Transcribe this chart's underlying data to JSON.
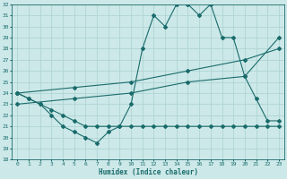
{
  "xlabel": "Humidex (Indice chaleur)",
  "background_color": "#cce8e8",
  "grid_color": "#b0d4d4",
  "line_color": "#1a6b6b",
  "ylim": [
    18,
    32
  ],
  "xlim": [
    -0.5,
    23.5
  ],
  "yticks": [
    18,
    19,
    20,
    21,
    22,
    23,
    24,
    25,
    26,
    27,
    28,
    29,
    30,
    31,
    32
  ],
  "xticks": [
    0,
    1,
    2,
    3,
    4,
    5,
    6,
    7,
    8,
    9,
    10,
    11,
    12,
    13,
    14,
    15,
    16,
    17,
    18,
    19,
    20,
    21,
    22,
    23
  ],
  "line1_x": [
    0,
    1,
    2,
    3,
    4,
    5,
    6,
    7,
    8,
    9,
    10,
    11,
    12,
    13,
    14,
    15,
    16,
    17,
    18,
    19,
    20,
    21,
    22,
    23
  ],
  "line1_y": [
    24,
    23.5,
    23,
    22,
    21,
    20.5,
    20,
    19.5,
    20.5,
    21,
    23,
    28,
    31,
    30,
    32,
    32,
    31,
    32,
    29,
    29,
    25.5,
    23.5,
    21.5,
    21.5
  ],
  "line2_x": [
    0,
    1,
    2,
    3,
    4,
    5,
    6,
    7,
    8,
    9,
    10,
    11,
    12,
    13,
    14,
    15,
    16,
    17,
    18,
    19,
    20,
    21,
    22,
    23
  ],
  "line2_y": [
    24,
    23.5,
    23,
    22.5,
    22,
    21.5,
    21,
    21,
    21,
    21,
    21,
    21,
    21,
    21,
    21,
    21,
    21,
    21,
    21,
    21,
    21,
    21,
    21,
    21
  ],
  "line3_x": [
    0,
    5,
    10,
    15,
    20,
    23
  ],
  "line3_y": [
    24,
    24.5,
    25,
    26,
    27,
    28
  ],
  "line4_x": [
    0,
    5,
    10,
    15,
    20,
    23
  ],
  "line4_y": [
    23,
    23.5,
    24,
    25,
    25.5,
    29
  ]
}
